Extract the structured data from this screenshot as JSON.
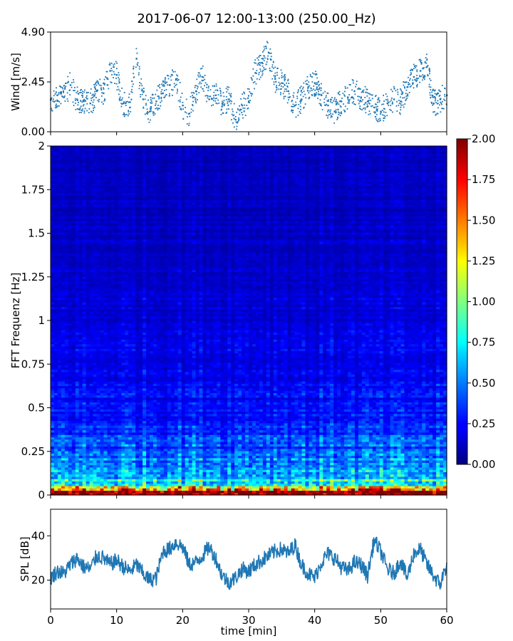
{
  "title": "2017-06-07 12:00-13:00 (250.00_Hz)",
  "chart_data": [
    {
      "type": "scatter",
      "ylabel": "Wind [m/s]",
      "xlim": [
        0,
        60
      ],
      "ylim": [
        0,
        4.9
      ],
      "yticks": [
        "0.00",
        "2.45",
        "4.90"
      ],
      "marker_color": "#1f77b4",
      "x": [
        0,
        1,
        2,
        3,
        4,
        5,
        6,
        7,
        8,
        9,
        10,
        11,
        12,
        13,
        14,
        15,
        16,
        17,
        18,
        19,
        20,
        21,
        22,
        23,
        24,
        25,
        26,
        27,
        28,
        29,
        30,
        31,
        32,
        33,
        34,
        35,
        36,
        37,
        38,
        39,
        40,
        41,
        42,
        43,
        44,
        45,
        46,
        47,
        48,
        49,
        50,
        51,
        52,
        53,
        54,
        55,
        56,
        57,
        58,
        59,
        60
      ],
      "y": [
        1.6,
        1.8,
        1.7,
        2.3,
        1.6,
        1.5,
        1.4,
        2.0,
        1.9,
        3.0,
        2.8,
        1.4,
        1.2,
        3.6,
        1.6,
        1.0,
        1.5,
        1.9,
        2.3,
        2.6,
        1.3,
        0.9,
        2.0,
        2.7,
        1.6,
        1.8,
        1.4,
        1.6,
        0.6,
        1.3,
        1.5,
        2.9,
        3.4,
        3.9,
        2.6,
        2.4,
        2.0,
        1.3,
        1.6,
        2.2,
        2.4,
        1.8,
        1.3,
        1.0,
        1.5,
        1.7,
        2.0,
        1.7,
        1.5,
        1.2,
        1.0,
        1.4,
        1.6,
        1.5,
        2.2,
        2.7,
        3.0,
        3.2,
        1.4,
        1.6,
        1.8
      ]
    },
    {
      "type": "heatmap",
      "ylabel": "FFT Frequenz [Hz]",
      "xlim": [
        0,
        60
      ],
      "ylim": [
        0,
        2
      ],
      "yticks": [
        "0",
        "0.25",
        "0.5",
        "0.75",
        "1",
        "1.25",
        "1.5",
        "1.75",
        "2"
      ],
      "colormap": "jet",
      "colorbar": {
        "vmin": 0,
        "vmax": 2,
        "ticks": [
          "0.00",
          "0.25",
          "0.50",
          "0.75",
          "1.00",
          "1.25",
          "1.50",
          "1.75",
          "2.00"
        ]
      },
      "freq_profile": {
        "frequency": [
          0,
          0.02,
          0.05,
          0.1,
          0.15,
          0.25,
          0.4,
          0.6,
          1.0,
          1.5,
          2.0
        ],
        "level": [
          2.0,
          1.8,
          1.0,
          0.75,
          0.55,
          0.42,
          0.32,
          0.24,
          0.18,
          0.14,
          0.12
        ]
      }
    },
    {
      "type": "line",
      "xlabel": "time [min]",
      "ylabel": "SPL [dB]",
      "xlim": [
        0,
        60
      ],
      "ylim": [
        7,
        52
      ],
      "xticks": [
        "0",
        "10",
        "20",
        "30",
        "40",
        "50",
        "60"
      ],
      "yticks": [
        "20",
        "40"
      ],
      "line_color": "#1f77b4",
      "x": [
        0,
        1,
        2,
        3,
        4,
        5,
        6,
        7,
        8,
        9,
        10,
        11,
        12,
        13,
        14,
        15,
        16,
        17,
        18,
        19,
        20,
        21,
        22,
        23,
        24,
        25,
        26,
        27,
        28,
        29,
        30,
        31,
        32,
        33,
        34,
        35,
        36,
        37,
        38,
        39,
        40,
        41,
        42,
        43,
        44,
        45,
        46,
        47,
        48,
        49,
        50,
        51,
        52,
        53,
        54,
        55,
        56,
        57,
        58,
        59,
        60
      ],
      "y": [
        21,
        24,
        23,
        27,
        30,
        26,
        25,
        31,
        30,
        27,
        29,
        26,
        24,
        27,
        23,
        20,
        21,
        33,
        34,
        37,
        35,
        27,
        28,
        31,
        35,
        30,
        22,
        19,
        21,
        25,
        24,
        27,
        29,
        31,
        33,
        34,
        32,
        36,
        27,
        23,
        21,
        28,
        32,
        30,
        26,
        24,
        28,
        27,
        22,
        38,
        33,
        25,
        23,
        29,
        21,
        32,
        34,
        27,
        22,
        18,
        27
      ]
    }
  ]
}
